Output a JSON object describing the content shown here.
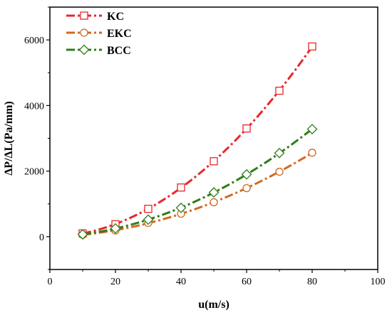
{
  "chart_data": {
    "type": "line",
    "title": "",
    "xlabel": "u(m/s)",
    "ylabel": "ΔP/ΔL(Pa/mm)",
    "xlim": [
      0,
      100
    ],
    "ylim": [
      -1000,
      7000
    ],
    "xticks": [
      0,
      20,
      40,
      60,
      80,
      100
    ],
    "yticks": [
      0,
      2000,
      4000,
      6000
    ],
    "xtick_labels": [
      "0",
      "20",
      "40",
      "60",
      "80",
      "100"
    ],
    "ytick_labels": [
      "0",
      "2000",
      "4000",
      "6000"
    ],
    "grid": false,
    "legend_position": "top-left",
    "series": [
      {
        "name": "KC",
        "color": "#e8262a",
        "marker": "square",
        "x": [
          10,
          20,
          30,
          40,
          50,
          60,
          70,
          80
        ],
        "y": [
          100,
          380,
          850,
          1500,
          2300,
          3300,
          4450,
          5800
        ]
      },
      {
        "name": "EKC",
        "color": "#d2691e",
        "marker": "circle",
        "x": [
          10,
          20,
          30,
          40,
          50,
          60,
          70,
          80
        ],
        "y": [
          60,
          190,
          420,
          700,
          1050,
          1480,
          1980,
          2560
        ]
      },
      {
        "name": "BCC",
        "color": "#2e7d1a",
        "marker": "diamond",
        "x": [
          10,
          20,
          30,
          40,
          50,
          60,
          70,
          80
        ],
        "y": [
          70,
          250,
          520,
          880,
          1350,
          1900,
          2550,
          3280
        ]
      }
    ]
  }
}
